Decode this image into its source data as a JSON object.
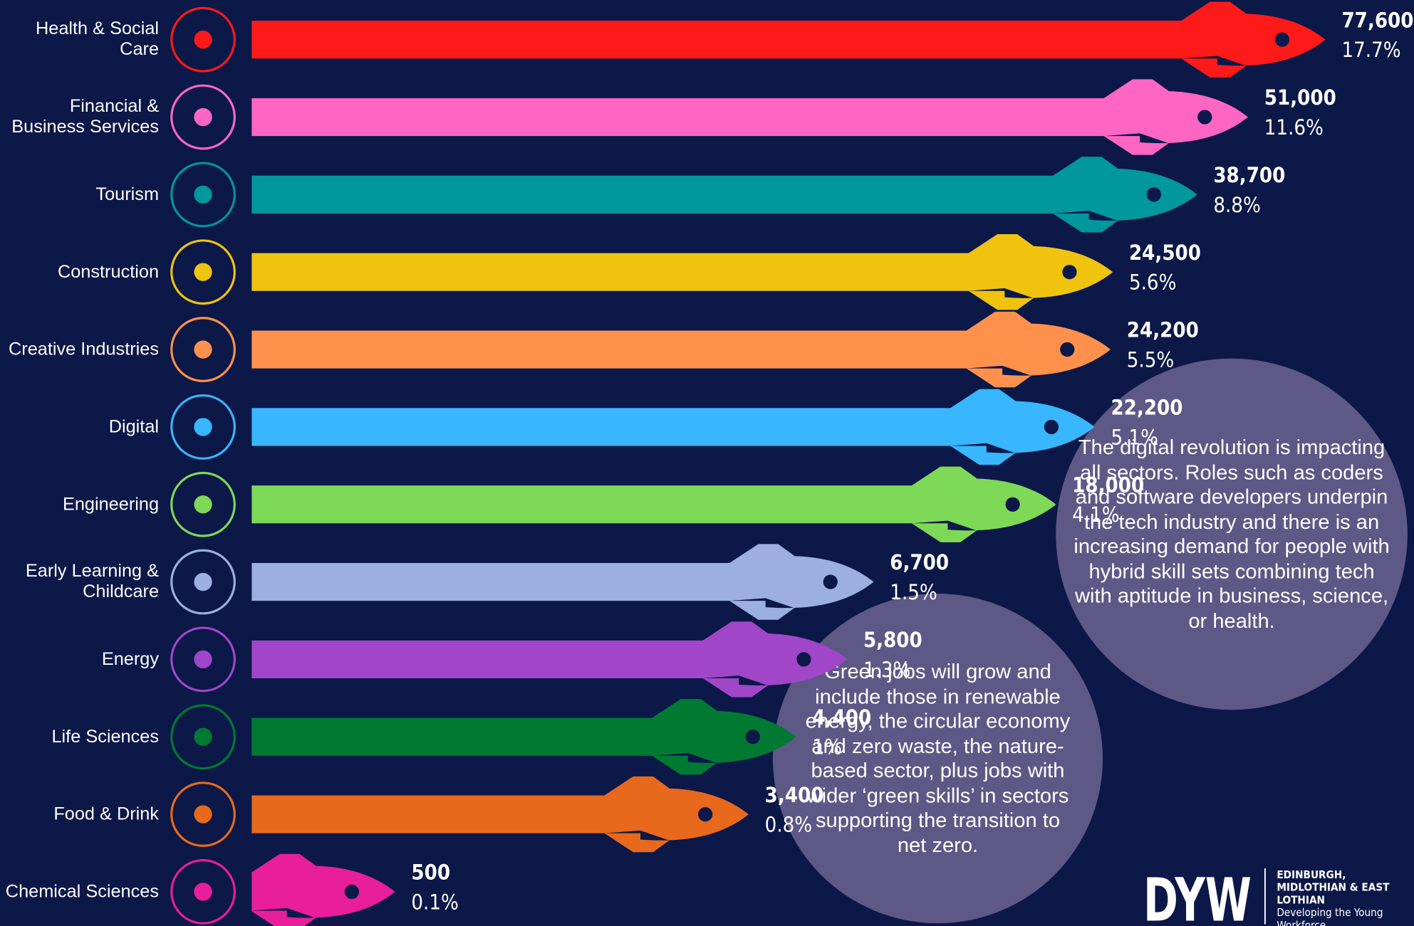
{
  "chart_data": {
    "type": "rocket-bar",
    "categories": [
      "Health & Social Care",
      "Financial & Business Services",
      "Tourism",
      "Construction",
      "Creative Industries",
      "Digital",
      "Engineering",
      "Early Learning & Childcare",
      "Energy",
      "Life Sciences",
      "Food & Drink",
      "Chemical Sciences"
    ],
    "values": [
      77600,
      51000,
      38700,
      24500,
      24200,
      22200,
      18000,
      6700,
      5800,
      4400,
      3400,
      500
    ],
    "value_labels": [
      "77,600",
      "51,000",
      "38,700",
      "24,500",
      "24,200",
      "22,200",
      "18,000",
      "6,700",
      "5,800",
      "4,400",
      "3,400",
      "500"
    ],
    "shares": [
      17.7,
      11.6,
      8.8,
      5.6,
      5.5,
      5.1,
      4.1,
      1.5,
      1.3,
      1,
      0.8,
      0.1
    ],
    "share_labels": [
      "17.7%",
      "11.6%",
      "8.8%",
      "5.6%",
      "5.5%",
      "5.1%",
      "4.1%",
      "1.5%",
      "1.3%",
      "1%",
      "0.8%",
      "0.1%"
    ],
    "colors": [
      "#ff1a1a",
      "#ff66c4",
      "#00979d",
      "#f0c30f",
      "#ff914d",
      "#38b6ff",
      "#7ed957",
      "#9bb0e0",
      "#a146c8",
      "#007a33",
      "#e8691c",
      "#e91e9a"
    ],
    "xscale": "log",
    "annotations": [
      "The digital revolution is impacting all sectors. Roles such as coders and software developers underpin the tech industry and there is an increasing demand for people with hybrid skill sets combining tech with aptitude in business, science, or health.",
      "Green jobs will grow and include those in renewable energy, the circular economy and zero waste, the nature-based sector, plus jobs with wider ‘green skills’ in sectors supporting the transition to net zero."
    ],
    "logo": {
      "mark": "DYW",
      "region": "EDINBURGH, MIDLOTHIAN & EAST LOTHIAN",
      "tagline": "Developing the Young Workforce"
    }
  }
}
